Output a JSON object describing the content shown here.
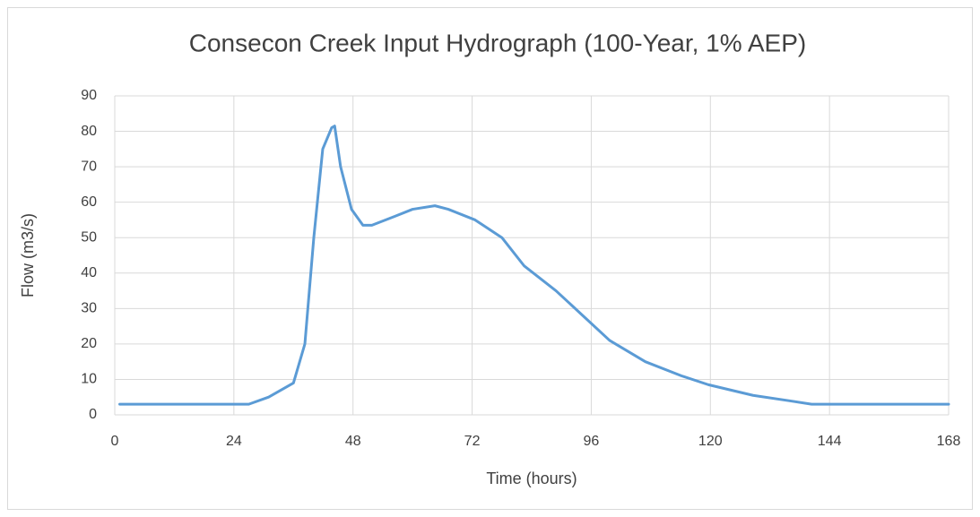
{
  "chart_data": {
    "type": "line",
    "title": "Consecon Creek Input Hydrograph (100-Year, 1% AEP)",
    "x_label": "Time (hours)",
    "y_label": "Flow (m3/s)",
    "xlim": [
      0,
      168
    ],
    "xticks": [
      0,
      24,
      48,
      72,
      96,
      120,
      144,
      168
    ],
    "ylim": [
      0,
      90
    ],
    "yticks": [
      0,
      10,
      20,
      30,
      40,
      50,
      60,
      70,
      80,
      90
    ],
    "grid": true,
    "series": [
      {
        "name": "Flow",
        "color": "#5b9bd5",
        "x": [
          1,
          27,
          31,
          36,
          38.3,
          40.1,
          41.9,
          43.7,
          44.3,
          45.5,
          47.7,
          50,
          51.8,
          56.4,
          60,
          64.5,
          67.2,
          72.6,
          78,
          82.5,
          88.9,
          94.3,
          99.7,
          106.9,
          114.2,
          119.6,
          128.6,
          135.8,
          140.4,
          168
        ],
        "values": [
          3,
          3,
          5,
          9,
          20,
          50,
          75,
          81,
          81.5,
          70,
          58,
          53.5,
          53.5,
          56,
          58,
          59,
          58,
          55,
          50,
          42,
          35,
          28,
          21,
          15,
          11,
          8.5,
          5.5,
          4,
          3,
          3
        ]
      }
    ]
  }
}
